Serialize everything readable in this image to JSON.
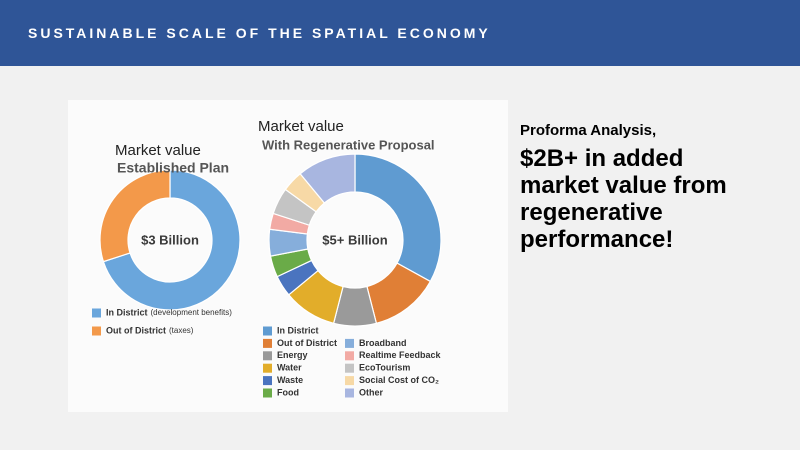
{
  "header": {
    "title": "SUSTAINABLE SCALE OF THE SPATIAL ECONOMY"
  },
  "callout": {
    "lead": "Proforma Analysis,",
    "body": "$2B+ in added market value from regenerative performance!"
  },
  "chart_data": [
    {
      "type": "pie",
      "label": "Market value",
      "title": "Established Plan",
      "center_label": "$3 Billion",
      "categories": [
        "In District",
        "Out of District"
      ],
      "category_notes": [
        "(development benefits)",
        "(taxes)"
      ],
      "values": [
        70,
        30
      ],
      "colors": [
        "#6aa6dc",
        "#f3994a"
      ]
    },
    {
      "type": "pie",
      "label": "Market value",
      "title": "With Regenerative Proposal",
      "center_label": "$5+ Billion",
      "categories": [
        "In District",
        "Out of District",
        "Energy",
        "Water",
        "Waste",
        "Food",
        "Broadband",
        "Realtime Feedback",
        "EcoTourism",
        "Social Cost of CO₂",
        "Other"
      ],
      "values": [
        33,
        13,
        8,
        10,
        4,
        4,
        5,
        3,
        5,
        4,
        11
      ],
      "colors": [
        "#5f9bd1",
        "#e07f36",
        "#9a9a9a",
        "#e2ad2a",
        "#4a74bf",
        "#6aab48",
        "#86aedb",
        "#f2aaa4",
        "#c4c4c4",
        "#f7d9a6",
        "#a8b6e0"
      ]
    }
  ]
}
